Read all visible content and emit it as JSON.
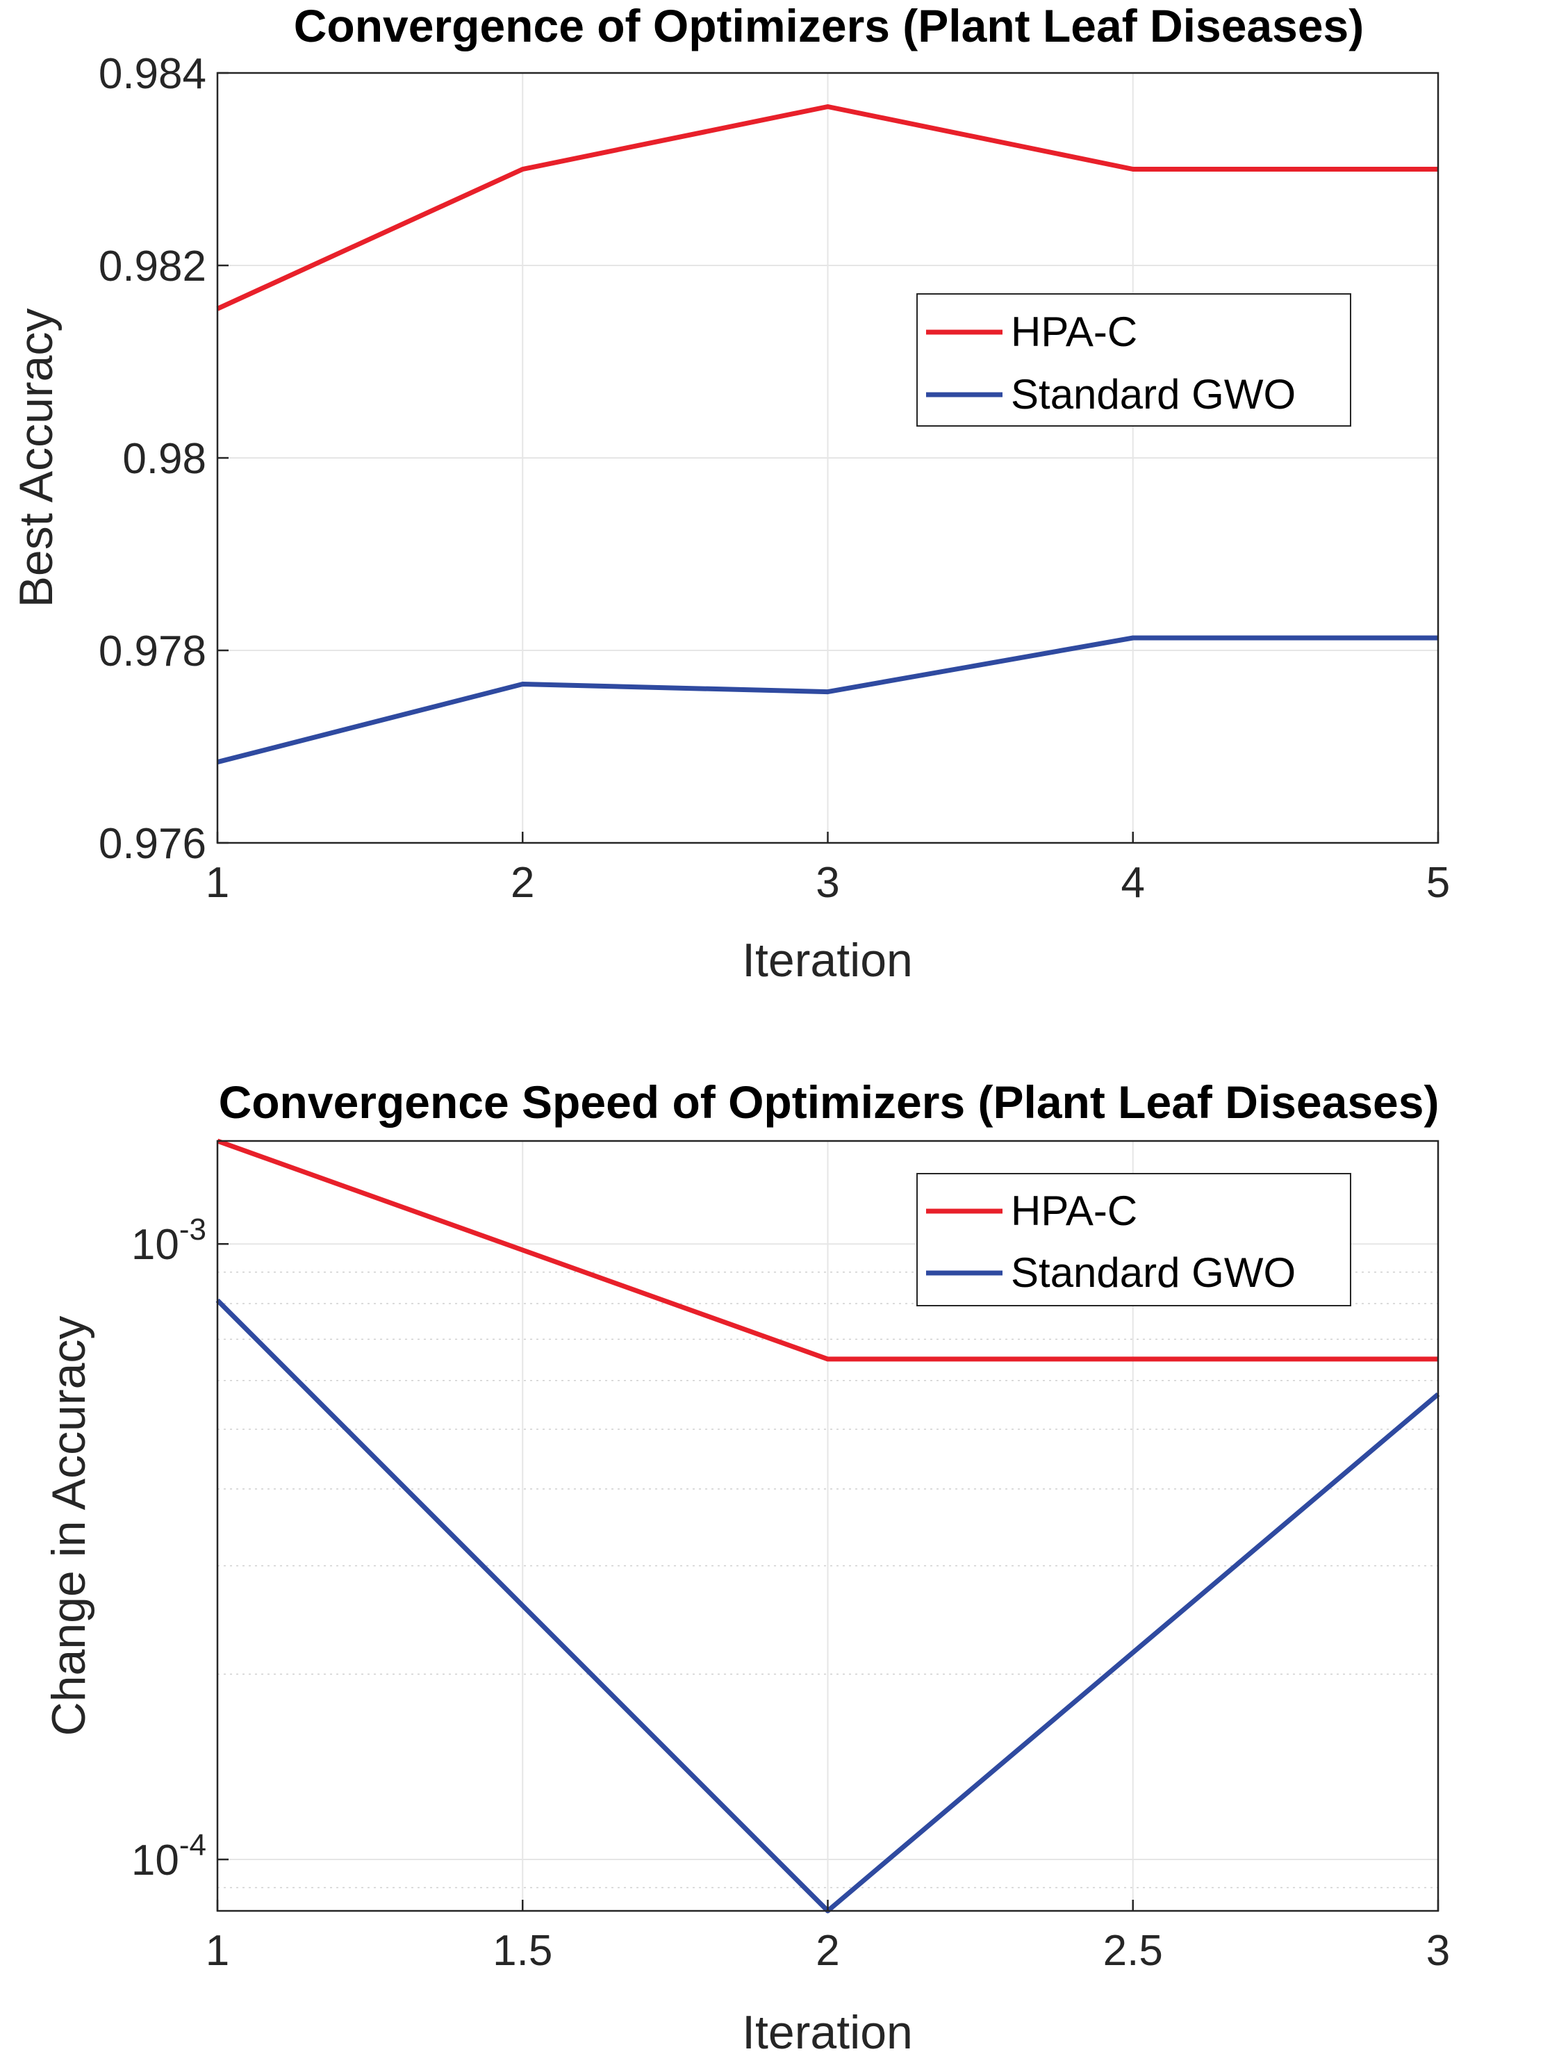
{
  "colors": {
    "hpa": "#e8202a",
    "gwo": "#2f4aa0",
    "axis": "#262626",
    "grid": "#e6e6e6",
    "minorgrid": "#d0d0d0"
  },
  "chart_data": [
    {
      "type": "line",
      "title": "Convergence of Optimizers (Plant Leaf Diseases)",
      "xlabel": "Iteration",
      "ylabel": "Best Accuracy",
      "yscale": "linear",
      "xlim": [
        1,
        5
      ],
      "ylim": [
        0.976,
        0.984
      ],
      "xticks": [
        1,
        2,
        3,
        4,
        5
      ],
      "xtick_labels": [
        "1",
        "2",
        "3",
        "4",
        "5"
      ],
      "yticks": [
        0.976,
        0.978,
        0.98,
        0.982,
        0.984
      ],
      "ytick_labels": [
        "0.976",
        "0.978",
        "0.98",
        "0.982",
        "0.984"
      ],
      "grid": true,
      "legend_position": "middle-right",
      "x": [
        1,
        2,
        3,
        4,
        5
      ],
      "series": [
        {
          "name": "HPA-C",
          "color_key": "hpa",
          "values": [
            0.98155,
            0.983,
            0.98365,
            0.983,
            0.983
          ]
        },
        {
          "name": "Standard GWO",
          "color_key": "gwo",
          "values": [
            0.97684,
            0.97765,
            0.97757,
            0.97813,
            0.97813
          ]
        }
      ]
    },
    {
      "type": "line",
      "title": "Convergence Speed of Optimizers (Plant Leaf Diseases)",
      "xlabel": "Iteration",
      "ylabel": "Change in Accuracy",
      "yscale": "log",
      "xlim": [
        1,
        3
      ],
      "ylim": [
        8.25e-05,
        0.00147
      ],
      "xticks": [
        1,
        1.5,
        2,
        2.5,
        3
      ],
      "xtick_labels": [
        "1",
        "1.5",
        "2",
        "2.5",
        "3"
      ],
      "yticks_log": [
        {
          "base": "10",
          "exp": "-3",
          "value": 0.001
        },
        {
          "base": "10",
          "exp": "-4",
          "value": 0.0001
        }
      ],
      "minor_grid": [
        0.0002,
        0.0003,
        0.0004,
        0.0005,
        0.0006,
        0.0007,
        0.0008,
        0.0009,
        9e-05
      ],
      "grid": true,
      "legend_position": "top-right",
      "x": [
        1,
        2,
        3
      ],
      "series": [
        {
          "name": "HPA-C",
          "color_key": "hpa",
          "values": [
            0.00147,
            0.00065,
            0.00065
          ]
        },
        {
          "name": "Standard GWO",
          "color_key": "gwo",
          "values": [
            0.00081,
            8.25e-05,
            0.00057
          ]
        }
      ]
    }
  ]
}
